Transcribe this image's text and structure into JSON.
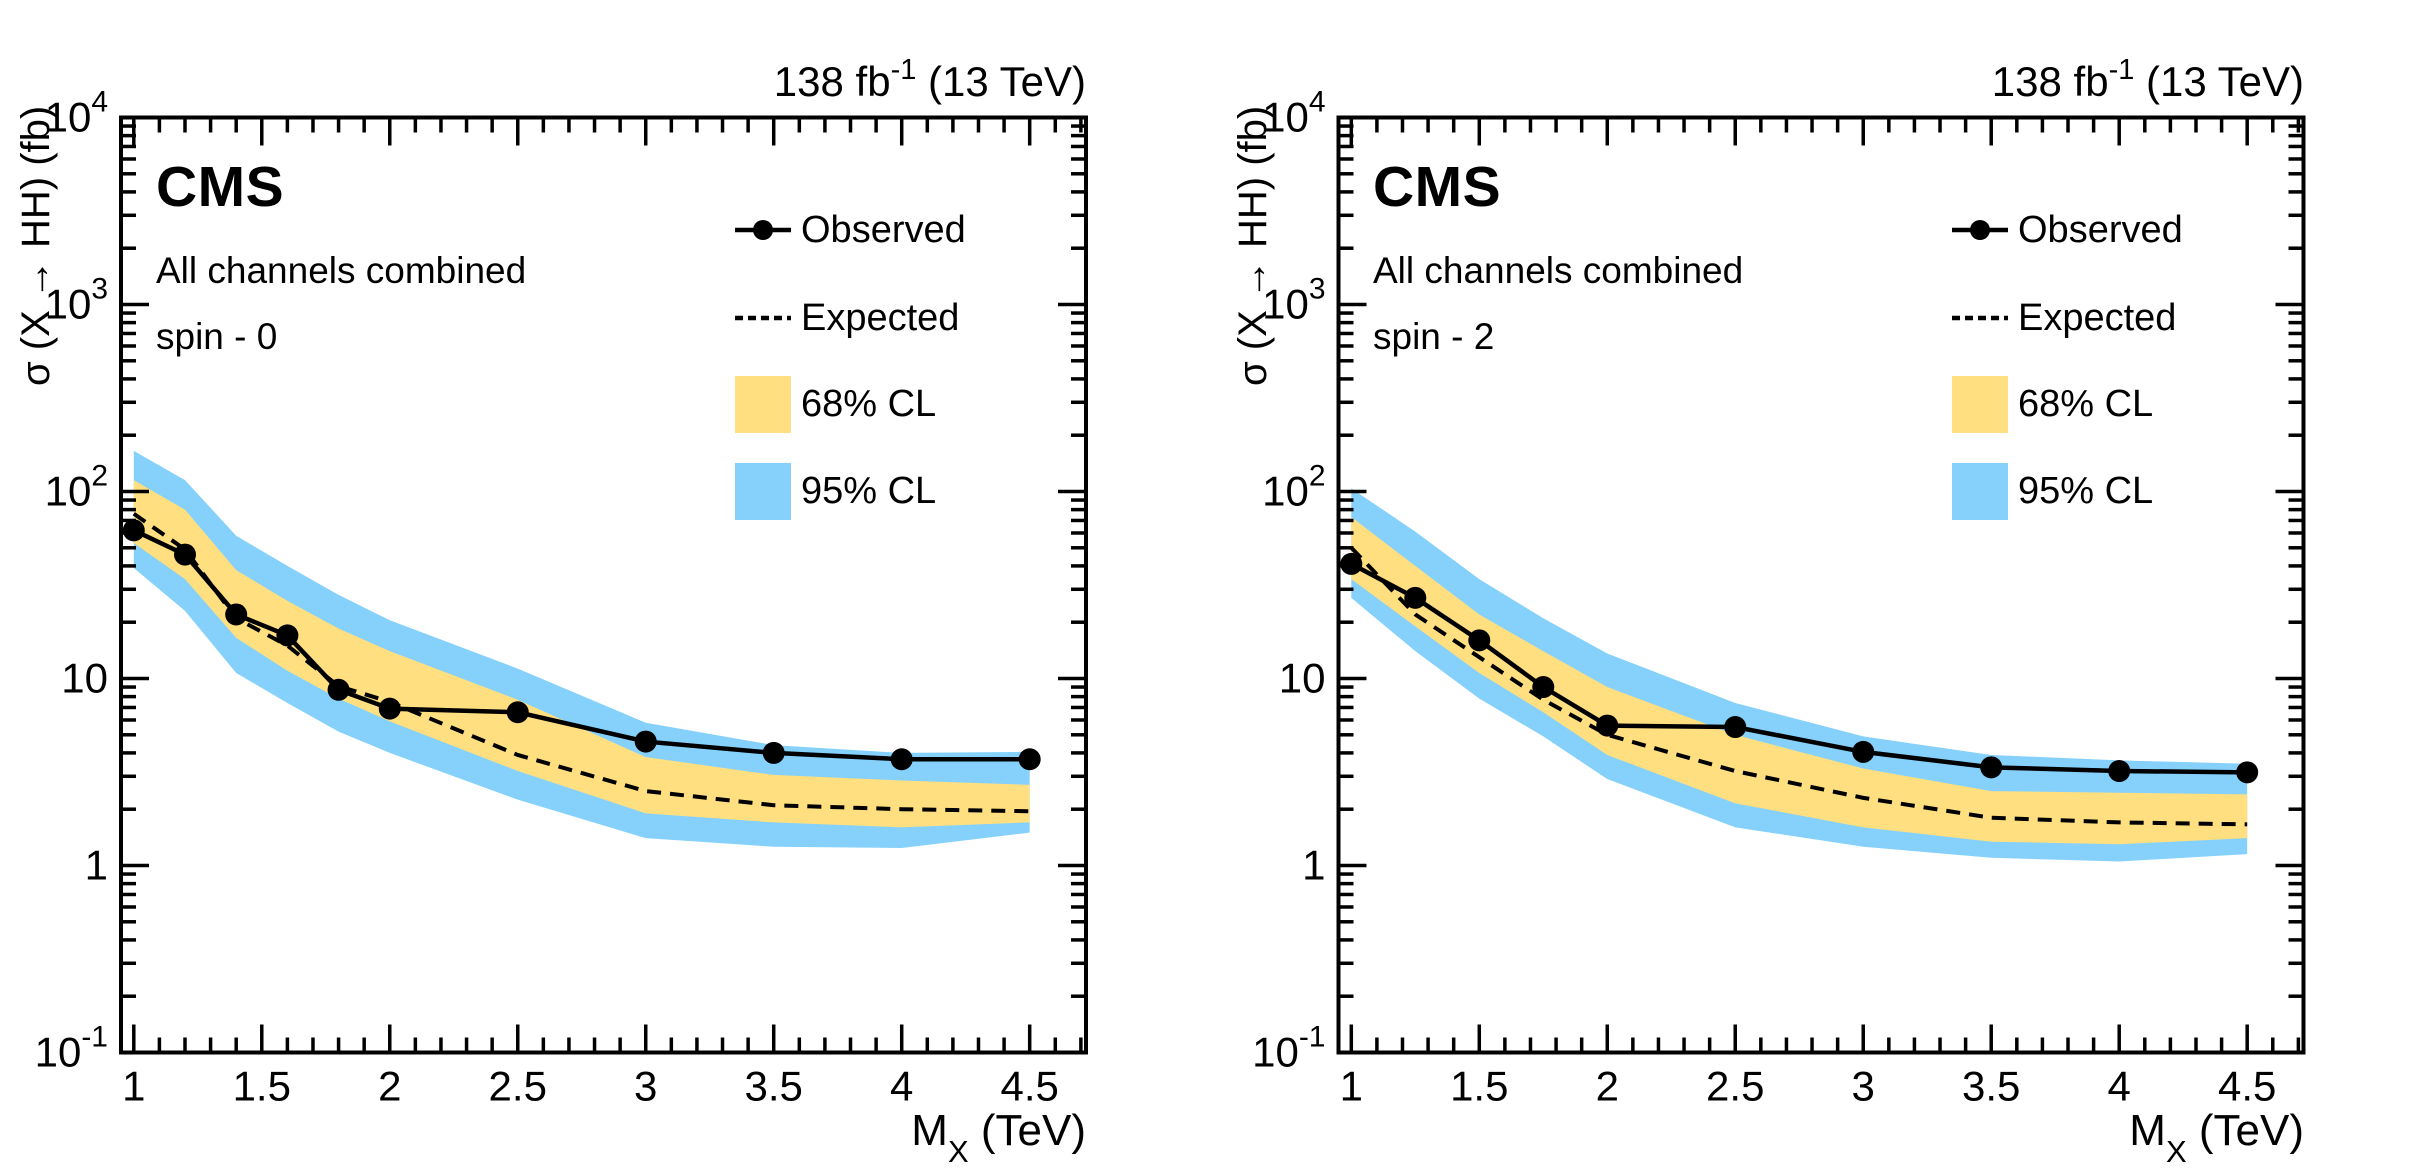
{
  "colors": {
    "band68": "#ffdf7f",
    "band95": "#85d1fb",
    "observed": "#000000",
    "expected": "#000000",
    "frame": "#000000"
  },
  "chart_data": [
    {
      "type": "line+band",
      "title": "CMS",
      "subtitle": [
        "All channels combined",
        "spin - 0"
      ],
      "lumi": {
        "text": "138 fb",
        "sup": "-1",
        "suffix": " (13 TeV)"
      },
      "xlabel": {
        "main": "M",
        "sub": "X",
        "suffix": " (TeV)"
      },
      "ylabel": "σ (X → HH) (fb)",
      "legend": [
        "Observed",
        "Expected",
        "68% CL",
        "95% CL"
      ],
      "legend_position": "top-right-inside",
      "grid": false,
      "yscale": "log",
      "xlim": [
        0.95,
        4.72
      ],
      "ylim": [
        0.1,
        10000
      ],
      "x": [
        1.0,
        1.2,
        1.4,
        1.6,
        1.8,
        2.0,
        2.5,
        3.0,
        3.5,
        4.0,
        4.5
      ],
      "series": [
        {
          "role": "observed",
          "name": "Observed",
          "values": [
            62,
            46,
            22,
            17,
            8.7,
            6.9,
            6.6,
            4.6,
            4.0,
            3.7,
            3.7
          ]
        },
        {
          "role": "expected",
          "name": "Expected",
          "values": [
            76,
            49,
            21,
            15,
            9.1,
            7.5,
            3.9,
            2.5,
            2.1,
            2.0,
            1.95
          ]
        },
        {
          "role": "band68_up",
          "name": "68% CL upper",
          "values": [
            115,
            80,
            38,
            26,
            18.5,
            14,
            7.7,
            3.8,
            3.05,
            2.85,
            2.7
          ]
        },
        {
          "role": "band68_down",
          "name": "68% CL lower",
          "values": [
            53,
            34,
            16.5,
            11,
            7.8,
            5.9,
            3.2,
            1.9,
            1.7,
            1.6,
            1.7
          ]
        },
        {
          "role": "band95_up",
          "name": "95% CL upper",
          "values": [
            165,
            115,
            58,
            40,
            28,
            20.5,
            11.3,
            5.8,
            4.4,
            4.0,
            4.05
          ]
        },
        {
          "role": "band95_down",
          "name": "95% CL lower",
          "values": [
            39,
            23,
            10.7,
            7.4,
            5.2,
            4.0,
            2.25,
            1.4,
            1.26,
            1.24,
            1.5
          ]
        }
      ],
      "x_ticks": {
        "values": [
          1,
          1.5,
          2,
          2.5,
          3,
          3.5,
          4,
          4.5
        ],
        "labels": [
          "1",
          "1.5",
          "2",
          "2.5",
          "3",
          "3.5",
          "4",
          "4.5"
        ],
        "minor_step": 0.1
      },
      "y_ticks": {
        "values": [
          0.1,
          1,
          10,
          100,
          1000,
          10000
        ],
        "labels": [
          {
            "base": "10",
            "exp": "-1"
          },
          {
            "base": "1"
          },
          {
            "base": "10"
          },
          {
            "base": "10",
            "exp": "2"
          },
          {
            "base": "10",
            "exp": "3"
          },
          {
            "base": "10",
            "exp": "4"
          }
        ]
      }
    },
    {
      "type": "line+band",
      "title": "CMS",
      "subtitle": [
        "All channels combined",
        "spin - 2"
      ],
      "lumi": {
        "text": "138 fb",
        "sup": "-1",
        "suffix": " (13 TeV)"
      },
      "xlabel": {
        "main": "M",
        "sub": "X",
        "suffix": " (TeV)"
      },
      "ylabel": "σ (X → HH) (fb)",
      "legend": [
        "Observed",
        "Expected",
        "68% CL",
        "95% CL"
      ],
      "legend_position": "top-right-inside",
      "grid": false,
      "yscale": "log",
      "xlim": [
        0.95,
        4.72
      ],
      "ylim": [
        0.1,
        10000
      ],
      "x": [
        1.0,
        1.25,
        1.5,
        1.75,
        2.0,
        2.5,
        3.0,
        3.5,
        4.0,
        4.5
      ],
      "series": [
        {
          "role": "observed",
          "name": "Observed",
          "values": [
            41,
            27,
            16,
            9.0,
            5.6,
            5.5,
            4.05,
            3.35,
            3.2,
            3.15
          ]
        },
        {
          "role": "expected",
          "name": "Expected",
          "values": [
            50,
            22,
            13,
            7.7,
            5.0,
            3.2,
            2.3,
            1.8,
            1.7,
            1.66
          ]
        },
        {
          "role": "band68_up",
          "name": "68% CL upper",
          "values": [
            73,
            40,
            22,
            14,
            9.0,
            5.0,
            3.3,
            2.5,
            2.45,
            2.4
          ]
        },
        {
          "role": "band68_down",
          "name": "68% CL lower",
          "values": [
            34,
            19,
            10.7,
            6.6,
            3.9,
            2.15,
            1.6,
            1.34,
            1.3,
            1.4
          ]
        },
        {
          "role": "band95_up",
          "name": "95% CL upper",
          "values": [
            104,
            61,
            34,
            21,
            13.6,
            7.4,
            4.9,
            3.9,
            3.65,
            3.5
          ]
        },
        {
          "role": "band95_down",
          "name": "95% CL lower",
          "values": [
            27,
            14,
            7.8,
            4.9,
            2.9,
            1.6,
            1.26,
            1.1,
            1.05,
            1.15
          ]
        }
      ],
      "x_ticks": {
        "values": [
          1,
          1.5,
          2,
          2.5,
          3,
          3.5,
          4,
          4.5
        ],
        "labels": [
          "1",
          "1.5",
          "2",
          "2.5",
          "3",
          "3.5",
          "4",
          "4.5"
        ],
        "minor_step": 0.1
      },
      "y_ticks": {
        "values": [
          0.1,
          1,
          10,
          100,
          1000,
          10000
        ],
        "labels": [
          {
            "base": "10",
            "exp": "-1"
          },
          {
            "base": "1"
          },
          {
            "base": "10"
          },
          {
            "base": "10",
            "exp": "2"
          },
          {
            "base": "10",
            "exp": "3"
          },
          {
            "base": "10",
            "exp": "4"
          }
        ]
      }
    }
  ]
}
